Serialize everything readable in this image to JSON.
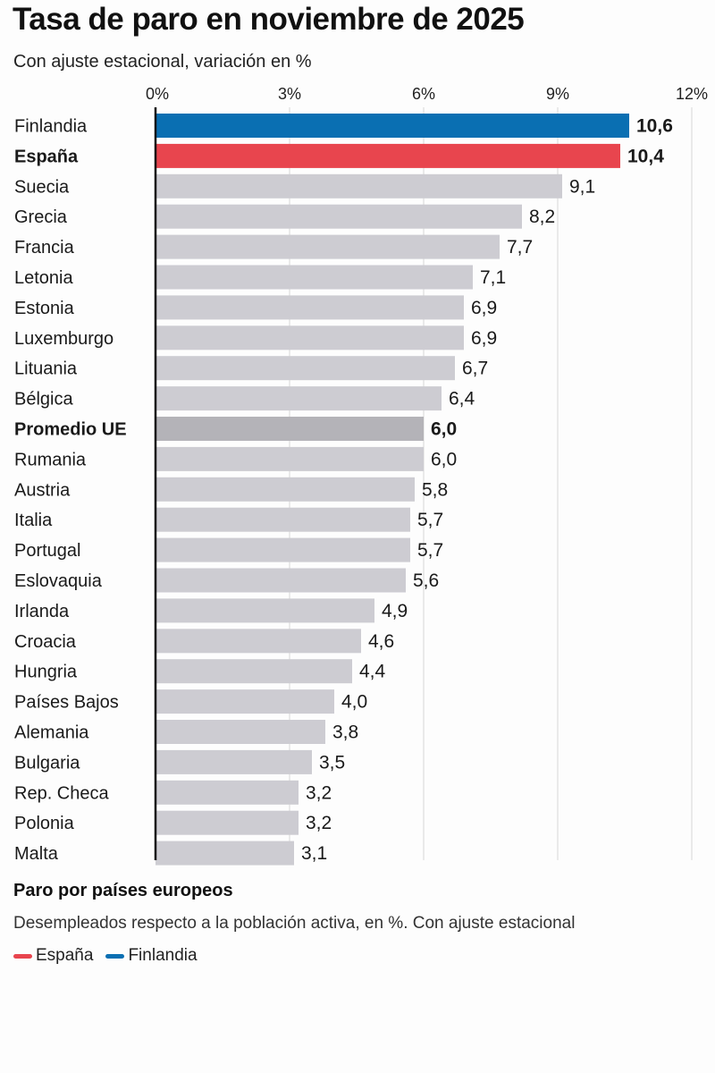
{
  "header": {
    "title": "Tasa de paro en noviembre de 2025",
    "subtitle": "Con ajuste estacional, variación en %"
  },
  "chart_data": {
    "type": "bar",
    "orientation": "horizontal",
    "categories": [
      "Finlandia",
      "España",
      "Suecia",
      "Grecia",
      "Francia",
      "Letonia",
      "Estonia",
      "Luxemburgo",
      "Lituania",
      "Bélgica",
      "Promedio UE",
      "Rumania",
      "Austria",
      "Italia",
      "Portugal",
      "Eslovaquia",
      "Irlanda",
      "Croacia",
      "Hungria",
      "Países Bajos",
      "Alemania",
      "Bulgaria",
      "Rep. Checa",
      "Polonia",
      "Malta"
    ],
    "values": [
      10.6,
      10.4,
      9.1,
      8.2,
      7.7,
      7.1,
      6.9,
      6.9,
      6.7,
      6.4,
      6.0,
      6.0,
      5.8,
      5.7,
      5.7,
      5.6,
      4.9,
      4.6,
      4.4,
      4.0,
      3.8,
      3.5,
      3.2,
      3.2,
      3.1
    ],
    "value_labels": [
      "10,6",
      "10,4",
      "9,1",
      "8,2",
      "7,7",
      "7,1",
      "6,9",
      "6,9",
      "6,7",
      "6,4",
      "6,0",
      "6,0",
      "5,8",
      "5,7",
      "5,7",
      "5,6",
      "4,9",
      "4,6",
      "4,4",
      "4,0",
      "3,8",
      "3,5",
      "3,2",
      "3,2",
      "3,1"
    ],
    "bold_categories": [
      "España",
      "Promedio UE"
    ],
    "highlight_colors": {
      "Finlandia": "#0a6fb2",
      "España": "#e8454e",
      "Promedio UE": "#b4b3b8"
    },
    "default_color": "#cdccd2",
    "xlim": [
      0,
      12
    ],
    "ticks": [
      0,
      3,
      6,
      9,
      12
    ],
    "tick_labels": [
      "0%",
      "3%",
      "6%",
      "9%",
      "12%"
    ],
    "xlabel": "",
    "ylabel": "",
    "grid": true,
    "legend_position": "bottom-left"
  },
  "footer": {
    "title": "Paro por países europeos",
    "subtitle": "Desempleados respecto a la población activa, en %. Con ajuste estacional"
  },
  "legend": {
    "items": [
      {
        "label": "España",
        "color": "#e8454e"
      },
      {
        "label": "Finlandia",
        "color": "#0a6fb2"
      }
    ]
  }
}
